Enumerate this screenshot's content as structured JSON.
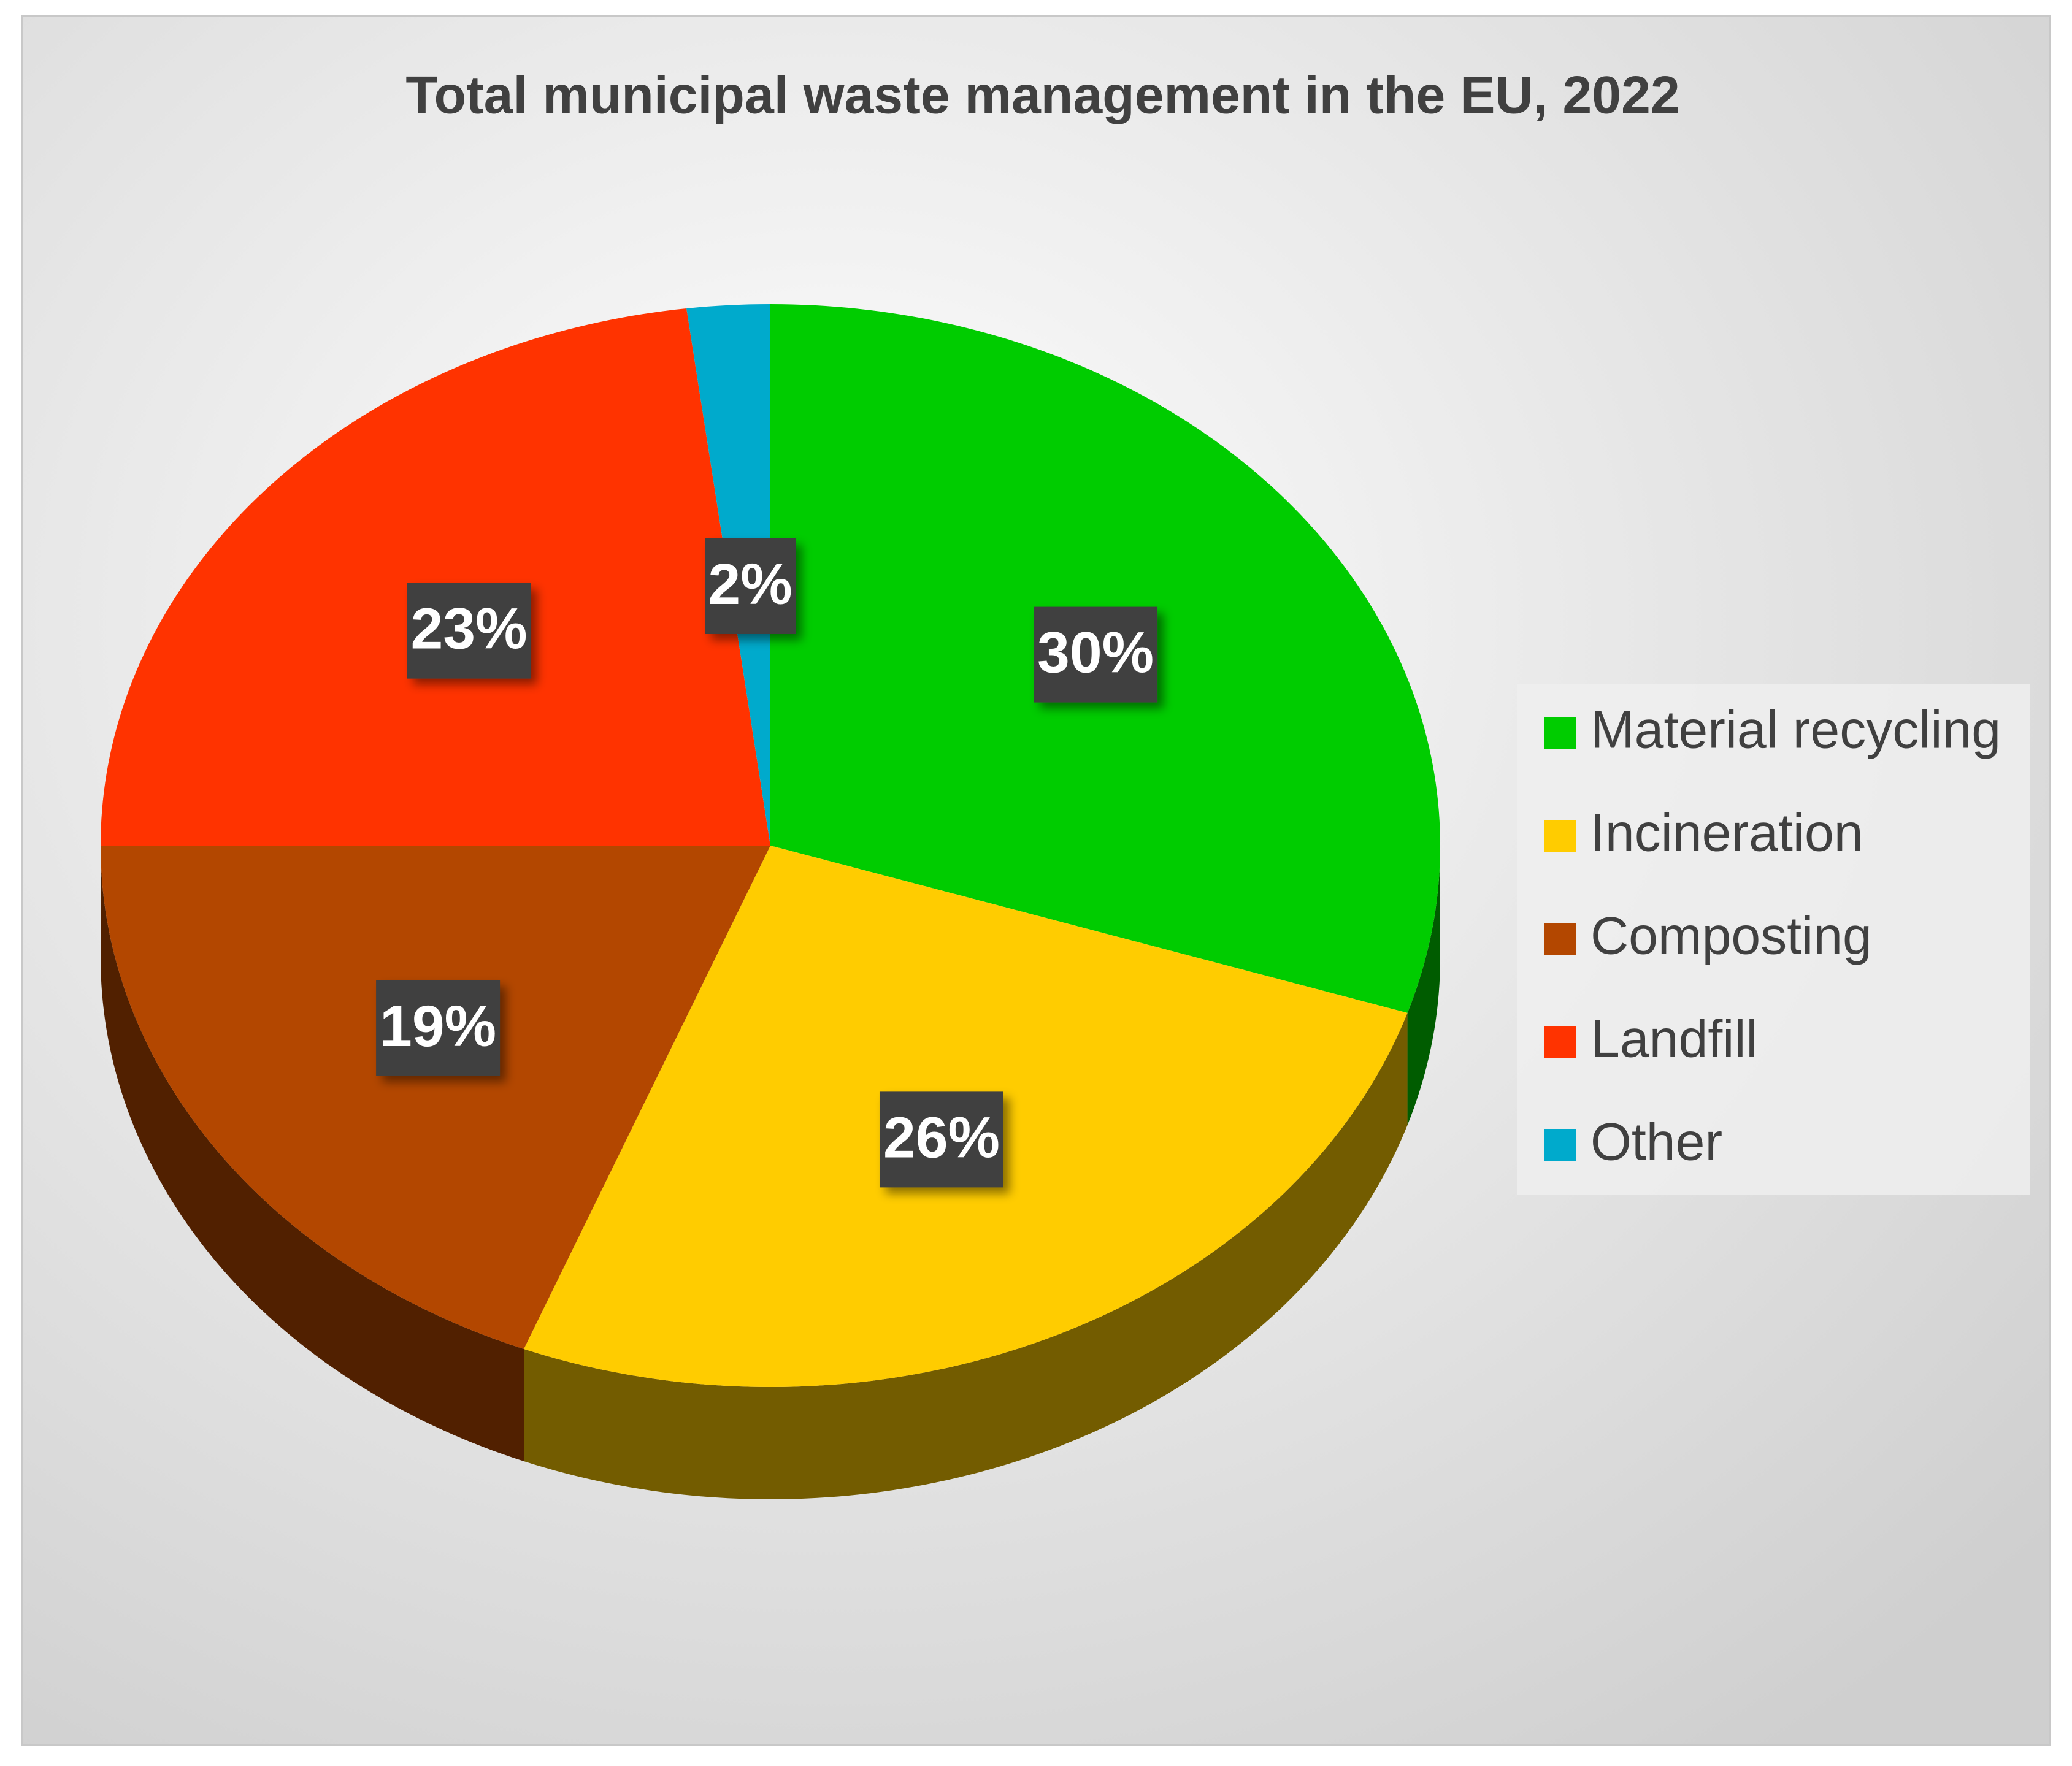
{
  "chart_data": {
    "type": "pie",
    "title": "Total municipal waste management in the EU, 2022",
    "categories": [
      "Material recycling",
      "Incineration",
      "Composting",
      "Landfill",
      "Other"
    ],
    "values": [
      30,
      26,
      19,
      23,
      2
    ],
    "value_labels": [
      "30%",
      "26%",
      "19%",
      "23%",
      "2%"
    ],
    "colors": [
      "#00cc00",
      "#ffcc00",
      "#b34700",
      "#ff3300",
      "#00aacc"
    ],
    "legend": "right"
  }
}
